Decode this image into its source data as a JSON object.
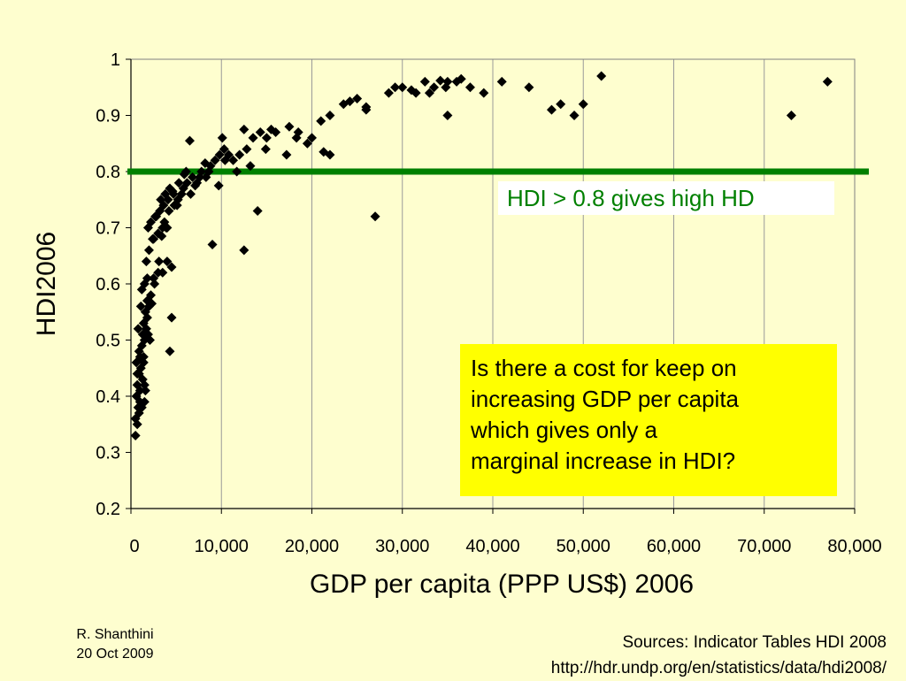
{
  "chart_data": {
    "type": "scatter",
    "xlabel": "GDP per capita (PPP US$) 2006",
    "ylabel": "HDI2006",
    "xlim": [
      0,
      80000
    ],
    "ylim": [
      0.2,
      1.0
    ],
    "x_ticks": [
      0,
      10000,
      20000,
      30000,
      40000,
      50000,
      60000,
      70000,
      80000
    ],
    "x_tick_labels": [
      "0",
      "10,000",
      "20,000",
      "30,000",
      "40,000",
      "50,000",
      "60,000",
      "70,000",
      "80,000"
    ],
    "y_ticks": [
      0.2,
      0.3,
      0.4,
      0.5,
      0.6,
      0.7,
      0.8,
      0.9,
      1.0
    ],
    "y_tick_labels": [
      "0.2",
      "0.3",
      "0.4",
      "0.5",
      "0.6",
      "0.7",
      "0.8",
      "0.9",
      "1"
    ],
    "grid": "vertical",
    "marker": "diamond",
    "marker_color": "#000000",
    "reference_line": {
      "y": 0.8,
      "color": "#008000"
    },
    "points": [
      [
        500,
        0.33
      ],
      [
        500,
        0.36
      ],
      [
        700,
        0.35
      ],
      [
        800,
        0.38
      ],
      [
        600,
        0.4
      ],
      [
        900,
        0.37
      ],
      [
        1000,
        0.39
      ],
      [
        1200,
        0.38
      ],
      [
        1500,
        0.39
      ],
      [
        700,
        0.42
      ],
      [
        900,
        0.44
      ],
      [
        1100,
        0.45
      ],
      [
        1300,
        0.43
      ],
      [
        1500,
        0.42
      ],
      [
        1600,
        0.41
      ],
      [
        1000,
        0.47
      ],
      [
        1200,
        0.49
      ],
      [
        1400,
        0.46
      ],
      [
        900,
        0.48
      ],
      [
        1300,
        0.51
      ],
      [
        1500,
        0.5
      ],
      [
        1700,
        0.52
      ],
      [
        1900,
        0.51
      ],
      [
        2100,
        0.5
      ],
      [
        1400,
        0.53
      ],
      [
        1600,
        0.55
      ],
      [
        1800,
        0.57
      ],
      [
        2000,
        0.56
      ],
      [
        2200,
        0.58
      ],
      [
        1200,
        0.59
      ],
      [
        1500,
        0.6
      ],
      [
        1800,
        0.61
      ],
      [
        2500,
        0.61
      ],
      [
        3000,
        0.62
      ],
      [
        1700,
        0.64
      ],
      [
        3500,
        0.62
      ],
      [
        4000,
        0.64
      ],
      [
        4500,
        0.63
      ],
      [
        2000,
        0.66
      ],
      [
        2500,
        0.68
      ],
      [
        3000,
        0.69
      ],
      [
        3500,
        0.7
      ],
      [
        4000,
        0.7
      ],
      [
        2200,
        0.71
      ],
      [
        2700,
        0.72
      ],
      [
        3200,
        0.73
      ],
      [
        3600,
        0.74
      ],
      [
        4200,
        0.73
      ],
      [
        4800,
        0.74
      ],
      [
        5200,
        0.75
      ],
      [
        3800,
        0.76
      ],
      [
        4300,
        0.77
      ],
      [
        4700,
        0.76
      ],
      [
        5300,
        0.78
      ],
      [
        5800,
        0.77
      ],
      [
        6200,
        0.78
      ],
      [
        6800,
        0.79
      ],
      [
        7300,
        0.78
      ],
      [
        7800,
        0.8
      ],
      [
        8300,
        0.79
      ],
      [
        8800,
        0.81
      ],
      [
        9300,
        0.82
      ],
      [
        9800,
        0.83
      ],
      [
        10300,
        0.84
      ],
      [
        10800,
        0.83
      ],
      [
        11300,
        0.82
      ],
      [
        12000,
        0.83
      ],
      [
        12800,
        0.84
      ],
      [
        13500,
        0.86
      ],
      [
        14300,
        0.87
      ],
      [
        15000,
        0.86
      ],
      [
        16000,
        0.87
      ],
      [
        17500,
        0.88
      ],
      [
        18500,
        0.87
      ],
      [
        20000,
        0.86
      ],
      [
        21000,
        0.89
      ],
      [
        22000,
        0.9
      ],
      [
        23500,
        0.92
      ],
      [
        25000,
        0.93
      ],
      [
        26000,
        0.91
      ],
      [
        28500,
        0.94
      ],
      [
        30000,
        0.95
      ],
      [
        31500,
        0.94
      ],
      [
        32500,
        0.96
      ],
      [
        33500,
        0.95
      ],
      [
        35000,
        0.96
      ],
      [
        36000,
        0.96
      ],
      [
        37500,
        0.95
      ],
      [
        39000,
        0.94
      ],
      [
        41000,
        0.96
      ],
      [
        44000,
        0.95
      ],
      [
        46500,
        0.91
      ],
      [
        47500,
        0.92
      ],
      [
        49000,
        0.9
      ],
      [
        50000,
        0.92
      ],
      [
        52000,
        0.97
      ],
      [
        35000,
        0.9
      ],
      [
        73000,
        0.9
      ],
      [
        77000,
        0.96
      ],
      [
        27000,
        0.72
      ],
      [
        14000,
        0.73
      ],
      [
        9000,
        0.67
      ],
      [
        12500,
        0.66
      ],
      [
        4500,
        0.54
      ],
      [
        4300,
        0.48
      ],
      [
        6500,
        0.855
      ],
      [
        12500,
        0.875
      ],
      [
        22000,
        0.83
      ],
      [
        26000,
        0.915
      ],
      [
        2800,
        0.72
      ],
      [
        3300,
        0.75
      ],
      [
        3700,
        0.71
      ],
      [
        4100,
        0.75
      ],
      [
        5600,
        0.76
      ],
      [
        6100,
        0.8
      ],
      [
        7100,
        0.775
      ],
      [
        8200,
        0.815
      ],
      [
        9700,
        0.775
      ],
      [
        10400,
        0.82
      ],
      [
        11700,
        0.8
      ],
      [
        13200,
        0.81
      ],
      [
        14900,
        0.84
      ],
      [
        17200,
        0.83
      ],
      [
        19500,
        0.85
      ],
      [
        24200,
        0.925
      ],
      [
        29200,
        0.95
      ],
      [
        31000,
        0.945
      ],
      [
        34200,
        0.962
      ],
      [
        36500,
        0.965
      ],
      [
        8600,
        0.8
      ],
      [
        7600,
        0.79
      ],
      [
        6600,
        0.76
      ],
      [
        5100,
        0.74
      ],
      [
        3900,
        0.7
      ],
      [
        2400,
        0.68
      ],
      [
        1900,
        0.7
      ],
      [
        1100,
        0.56
      ],
      [
        800,
        0.52
      ],
      [
        600,
        0.46
      ],
      [
        2600,
        0.6
      ],
      [
        3400,
        0.685
      ],
      [
        4600,
        0.765
      ],
      [
        5900,
        0.795
      ],
      [
        10100,
        0.86
      ],
      [
        15500,
        0.875
      ],
      [
        18300,
        0.86
      ],
      [
        21300,
        0.835
      ],
      [
        33000,
        0.94
      ],
      [
        34800,
        0.95
      ],
      [
        700,
        0.44
      ],
      [
        1000,
        0.41
      ],
      [
        1400,
        0.47
      ],
      [
        1800,
        0.54
      ],
      [
        2300,
        0.565
      ],
      [
        3100,
        0.64
      ]
    ]
  },
  "annotations": {
    "green_label": "HDI > 0.8 gives high HD",
    "question_lines": [
      "Is there a cost for keep on",
      "increasing GDP per capita",
      "which gives only a",
      "marginal increase in HDI?"
    ]
  },
  "footer": {
    "author": "R. Shanthini",
    "date": "20 Oct 2009",
    "sources": "Sources: Indicator Tables HDI 2008",
    "url": "http://hdr.undp.org/en/statistics/data/hdi2008/"
  }
}
